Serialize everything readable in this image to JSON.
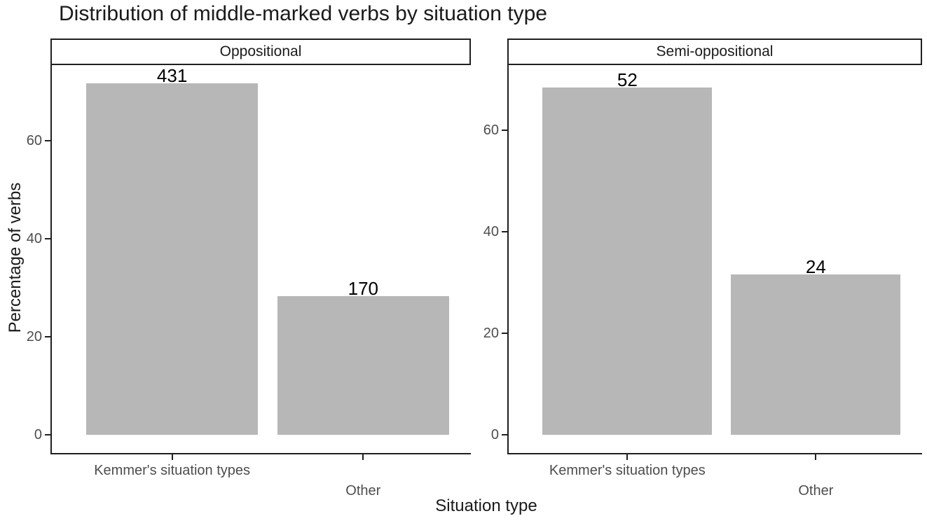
{
  "title": "Distribution of middle-marked verbs by situation type",
  "colors": {
    "bar_fill": "#b7b7b7",
    "axis_line": "#1f1f1f",
    "tick_label": "#4d4d4d",
    "text": "#1a1a1a"
  },
  "chart_data": {
    "type": "bar",
    "title": "Distribution of middle-marked verbs by situation type",
    "xlabel": "Situation type",
    "ylabel": "Percentage of verbs",
    "y_ticks": [
      0,
      20,
      40,
      60
    ],
    "ylim": [
      0,
      75
    ],
    "grid": false,
    "legend": false,
    "bar_color": "#b7b7b7",
    "value_labels_show": "counts",
    "facets": [
      {
        "label": "Oppositional",
        "categories": [
          "Kemmer's situation types",
          "Other"
        ],
        "counts": [
          431,
          170
        ],
        "percentages": [
          71.7,
          28.3
        ]
      },
      {
        "label": "Semi-oppositional",
        "categories": [
          "Kemmer's situation types",
          "Other"
        ],
        "counts": [
          52,
          24
        ],
        "percentages": [
          68.4,
          31.6
        ]
      }
    ]
  }
}
